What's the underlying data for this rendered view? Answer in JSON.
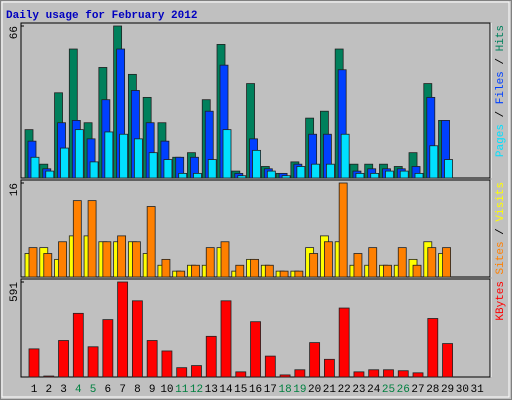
{
  "chart_data": {
    "type": "bar",
    "title": "Daily usage for February 2012",
    "categories": [
      "1",
      "2",
      "3",
      "4",
      "5",
      "6",
      "7",
      "8",
      "9",
      "10",
      "11",
      "12",
      "13",
      "14",
      "15",
      "16",
      "17",
      "18",
      "19",
      "20",
      "21",
      "22",
      "23",
      "24",
      "25",
      "26",
      "27",
      "28",
      "29",
      "30",
      "31"
    ],
    "category_colors": [
      "#000000",
      "#000000",
      "#000000",
      "#008040",
      "#008040",
      "#000000",
      "#000000",
      "#000000",
      "#000000",
      "#000000",
      "#008040",
      "#008040",
      "#000000",
      "#000000",
      "#000000",
      "#000000",
      "#000000",
      "#008040",
      "#008040",
      "#000000",
      "#000000",
      "#000000",
      "#000000",
      "#000000",
      "#008040",
      "#008040",
      "#000000",
      "#000000",
      "#000000",
      "#000000",
      "#000000"
    ],
    "legend_separator": " / ",
    "panels": [
      {
        "ylim": [
          0,
          66
        ],
        "yticks": [
          66
        ],
        "series": [
          {
            "name": "Hits",
            "color": "#00805c",
            "values": [
              21,
              6,
              37,
              56,
              24,
              48,
              66,
              45,
              35,
              24,
              9,
              11,
              34,
              58,
              3,
              41,
              5,
              2,
              7,
              26,
              29,
              56,
              6,
              6,
              6,
              5,
              11,
              41,
              25,
              null,
              null
            ]
          },
          {
            "name": "Files",
            "color": "#0040ff",
            "values": [
              16,
              4,
              24,
              25,
              17,
              34,
              56,
              38,
              24,
              16,
              9,
              9,
              29,
              49,
              2,
              17,
              4,
              2,
              6,
              19,
              19,
              47,
              3,
              4,
              4,
              4,
              5,
              35,
              25,
              null,
              null
            ]
          },
          {
            "name": "Pages",
            "color": "#00e0ff",
            "values": [
              9,
              3,
              13,
              21,
              7,
              20,
              19,
              17,
              11,
              8,
              2,
              2,
              8,
              21,
              1,
              12,
              3,
              1,
              5,
              6,
              6,
              19,
              2,
              2,
              3,
              3,
              2,
              14,
              8,
              null,
              null
            ]
          }
        ]
      },
      {
        "ylim": [
          0,
          16
        ],
        "yticks": [
          16
        ],
        "series": [
          {
            "name": "Visits",
            "color": "#ffff00",
            "values": [
              4,
              5,
              3,
              7,
              7,
              6,
              6,
              6,
              4,
              2,
              1,
              2,
              2,
              5,
              1,
              3,
              2,
              1,
              1,
              5,
              7,
              6,
              2,
              2,
              2,
              2,
              3,
              6,
              4,
              null,
              null
            ]
          },
          {
            "name": "Sites",
            "color": "#ff8000",
            "values": [
              5,
              4,
              6,
              13,
              13,
              6,
              7,
              6,
              12,
              3,
              1,
              2,
              5,
              6,
              2,
              3,
              2,
              1,
              1,
              4,
              6,
              16,
              4,
              5,
              2,
              5,
              2,
              5,
              5,
              null,
              null
            ]
          }
        ]
      },
      {
        "ylim": [
          0,
          591
        ],
        "yticks": [
          591
        ],
        "series": [
          {
            "name": "KBytes",
            "color": "#ff0000",
            "values": [
              175,
              6,
              227,
              396,
              188,
              357,
              591,
              474,
              227,
              162,
              58,
              71,
              253,
              474,
              32,
              344,
              130,
              13,
              45,
              214,
              110,
              429,
              32,
              45,
              45,
              39,
              26,
              364,
              208,
              null,
              null
            ]
          }
        ]
      }
    ]
  }
}
